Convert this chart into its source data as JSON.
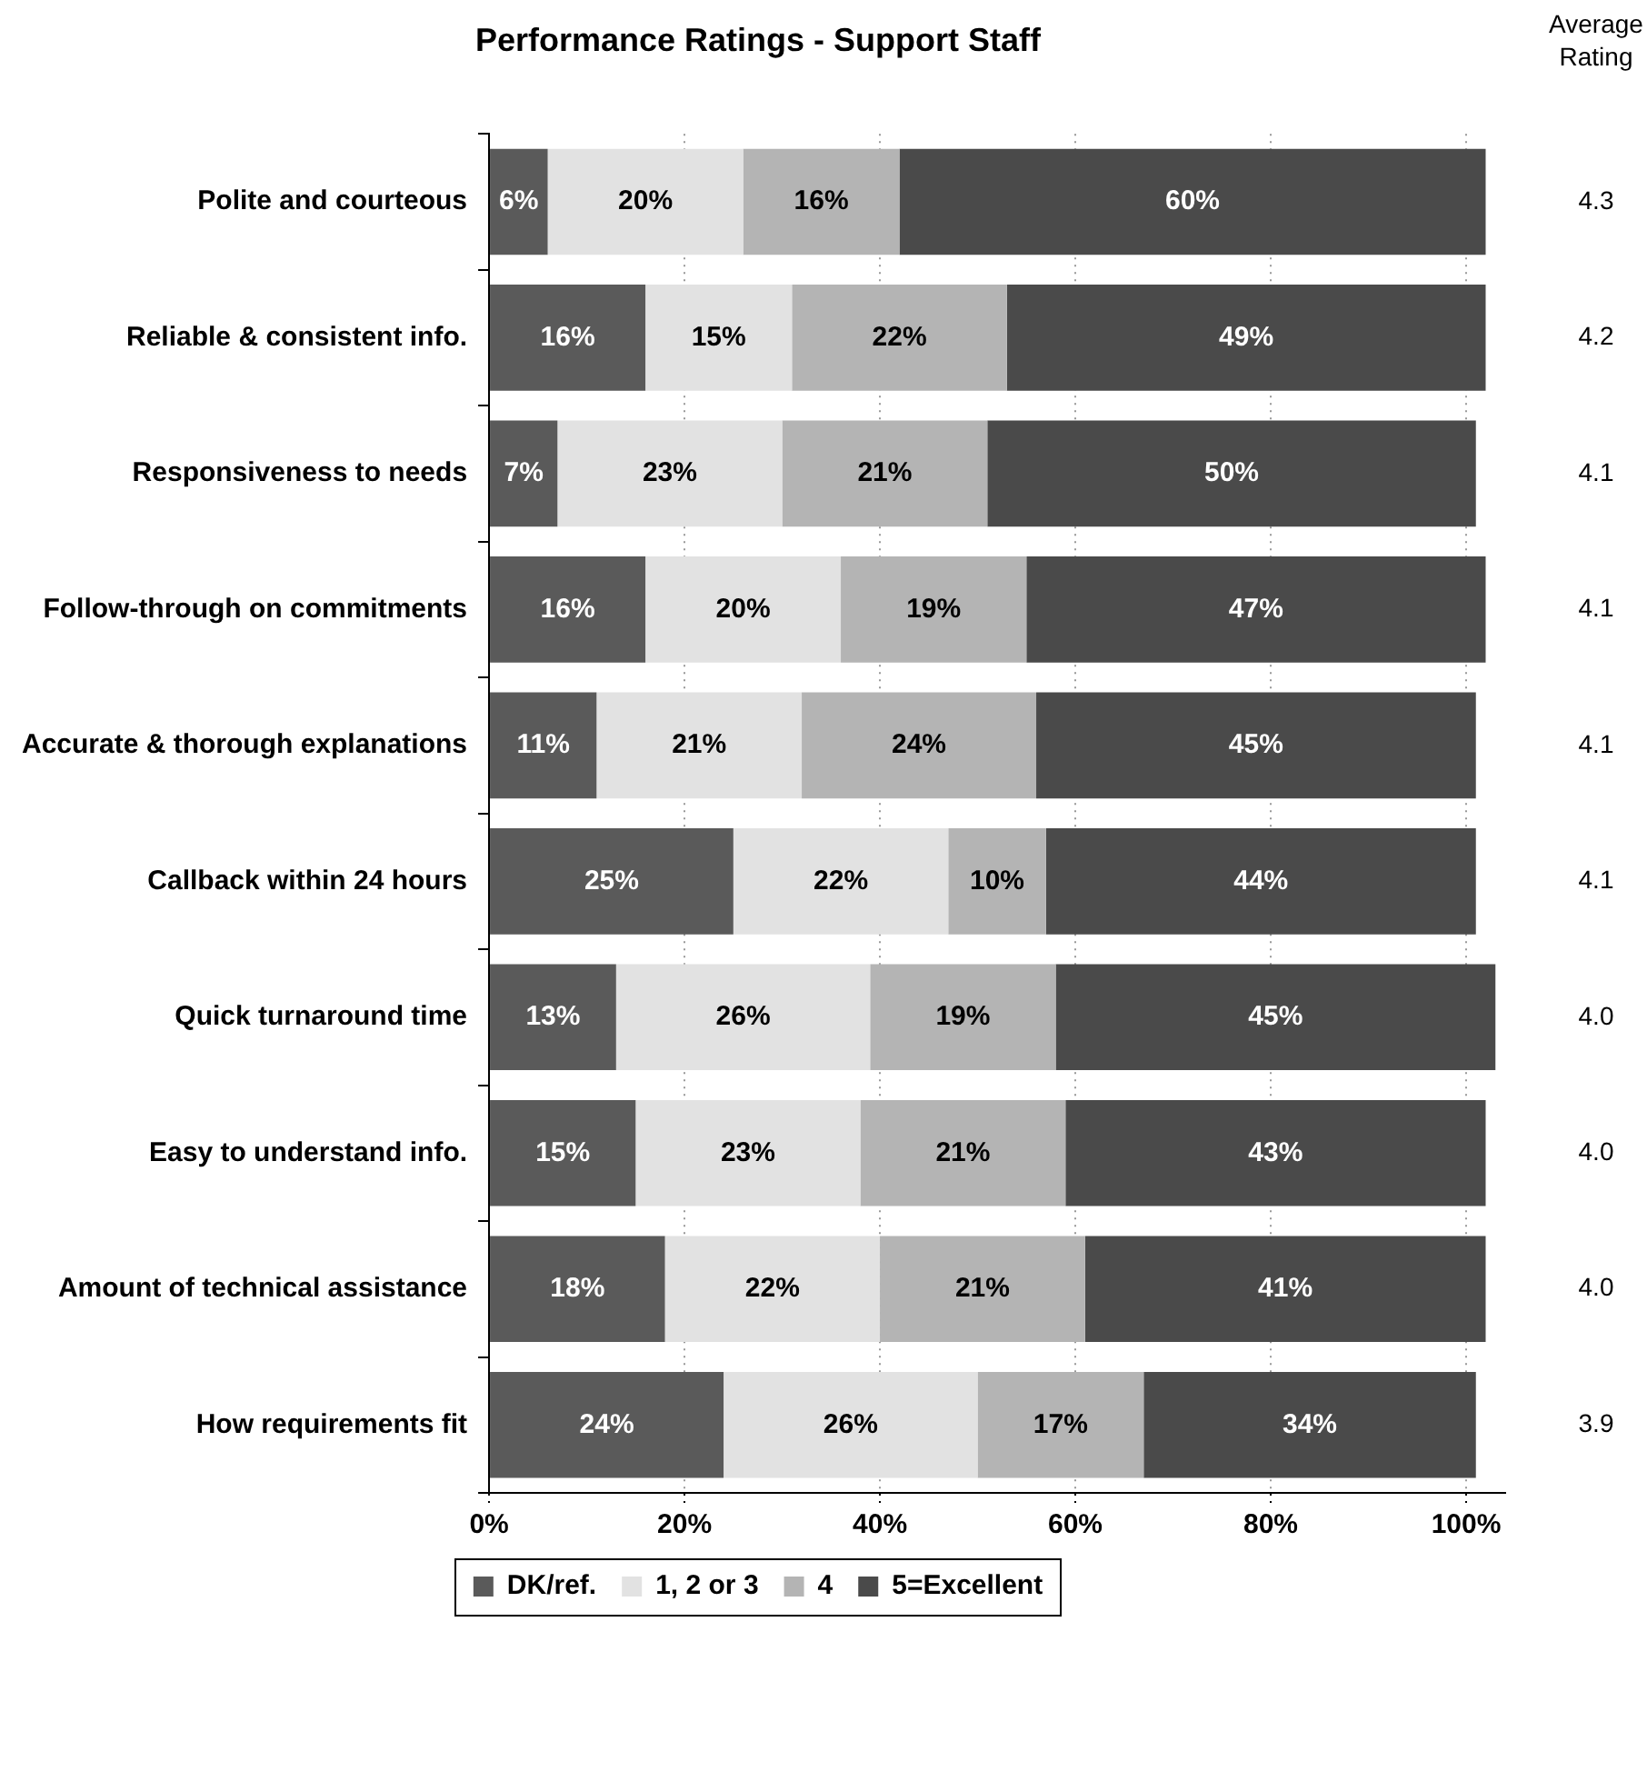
{
  "chart_data": {
    "type": "bar",
    "orientation": "horizontal",
    "stacked": true,
    "title": "Performance Ratings - Support Staff",
    "categories": [
      "Polite and courteous",
      "Reliable & consistent info.",
      "Responsiveness to needs",
      "Follow-through on commitments",
      "Accurate & thorough explanations",
      "Callback within 24 hours",
      "Quick turnaround time",
      "Easy to understand info.",
      "Amount of technical assistance",
      "How requirements fit"
    ],
    "series": [
      {
        "name": "DK/ref.",
        "color": "#5a5a5a",
        "values": [
          6,
          16,
          7,
          16,
          11,
          25,
          13,
          15,
          18,
          24
        ],
        "value_labels": [
          "6%",
          "16%",
          "7%",
          "16%",
          "11%",
          "25%",
          "13%",
          "15%",
          "18%",
          "24%"
        ]
      },
      {
        "name": "1, 2 or 3",
        "color": "#e2e2e2",
        "values": [
          20,
          15,
          23,
          20,
          21,
          22,
          26,
          23,
          22,
          26
        ],
        "value_labels": [
          "20%",
          "15%",
          "23%",
          "20%",
          "21%",
          "22%",
          "26%",
          "23%",
          "22%",
          "26%"
        ]
      },
      {
        "name": "4",
        "color": "#b4b4b4",
        "values": [
          16,
          22,
          21,
          19,
          24,
          10,
          19,
          21,
          21,
          17
        ],
        "value_labels": [
          "16%",
          "22%",
          "21%",
          "19%",
          "24%",
          "10%",
          "19%",
          "21%",
          "21%",
          "17%"
        ]
      },
      {
        "name": "5=Excellent",
        "color": "#4a4a4a",
        "values": [
          60,
          49,
          50,
          47,
          45,
          44,
          45,
          43,
          41,
          34
        ],
        "value_labels": [
          "60%",
          "49%",
          "50%",
          "47%",
          "45%",
          "44%",
          "45%",
          "43%",
          "41%",
          "34%"
        ]
      }
    ],
    "xlim": [
      0,
      104
    ],
    "xticks": [
      {
        "value": 0,
        "label": "0%"
      },
      {
        "value": 20,
        "label": "20%"
      },
      {
        "value": 40,
        "label": "40%"
      },
      {
        "value": 60,
        "label": "60%"
      },
      {
        "value": 80,
        "label": "80%"
      },
      {
        "value": 100,
        "label": "100%"
      }
    ],
    "grid": "x",
    "line_style": "dotted",
    "legend": "bottom",
    "annotations": [
      "Average Rating",
      "4.3",
      "4.2",
      "4.1",
      "4.1",
      "4.1",
      "4.1",
      "4.0",
      "4.0",
      "4.0",
      "3.9"
    ]
  }
}
